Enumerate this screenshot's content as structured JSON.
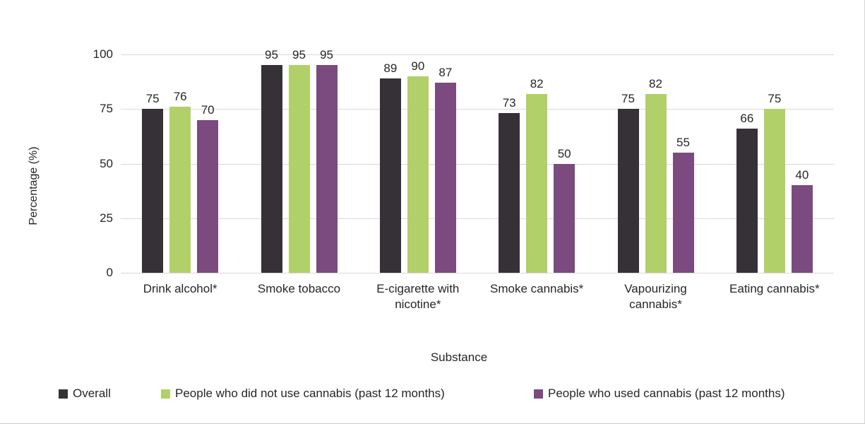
{
  "chart_data": {
    "type": "bar",
    "categories": [
      "Drink alcohol*",
      "Smoke tobacco",
      "E-cigarette with nicotine*",
      "Smoke cannabis*",
      "Vapourizing cannabis*",
      "Eating cannabis*"
    ],
    "series": [
      {
        "name": "Overall",
        "color": "#363136",
        "values": [
          75,
          95,
          89,
          73,
          75,
          66
        ]
      },
      {
        "name": "People who did not use cannabis (past 12 months)",
        "color": "#b2d069",
        "values": [
          76,
          95,
          90,
          82,
          82,
          75
        ]
      },
      {
        "name": "People who used cannabis (past 12 months)",
        "color": "#7b4a7f",
        "values": [
          70,
          95,
          87,
          50,
          55,
          40
        ]
      }
    ],
    "xlabel": "Substance",
    "ylabel": "Percentage (%)",
    "ylim": [
      0,
      100
    ],
    "yticks": [
      0,
      25,
      50,
      75,
      100
    ],
    "grid": true,
    "gridline_color": "#d9d9d9",
    "legend_position": "bottom",
    "data_labels": true
  },
  "layout_colors": {
    "text": "#262626",
    "frame_border": "#d6d6d6"
  }
}
